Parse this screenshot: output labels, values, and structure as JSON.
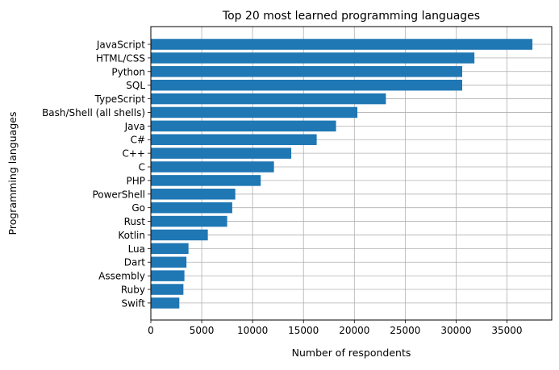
{
  "chart_data": {
    "type": "bar",
    "orientation": "horizontal",
    "title": "Top 20 most learned programming languages",
    "xlabel": "Number of respondents",
    "ylabel": "Programming languages",
    "categories": [
      "JavaScript",
      "HTML/CSS",
      "Python",
      "SQL",
      "TypeScript",
      "Bash/Shell (all shells)",
      "Java",
      "C#",
      "C++",
      "C",
      "PHP",
      "PowerShell",
      "Go",
      "Rust",
      "Kotlin",
      "Lua",
      "Dart",
      "Assembly",
      "Ruby",
      "Swift"
    ],
    "values": [
      37500,
      31800,
      30600,
      30600,
      23100,
      20300,
      18200,
      16300,
      13800,
      12100,
      10800,
      8300,
      8000,
      7500,
      5600,
      3700,
      3500,
      3300,
      3200,
      2800
    ],
    "xlim": [
      0,
      39400
    ],
    "xticks": [
      0,
      5000,
      10000,
      15000,
      20000,
      25000,
      30000,
      35000
    ],
    "xtick_labels": [
      "0",
      "5000",
      "10000",
      "15000",
      "20000",
      "25000",
      "30000",
      "35000"
    ],
    "grid": true,
    "bar_color": "#1f77b4",
    "grid_color": "#b0b0b0"
  }
}
